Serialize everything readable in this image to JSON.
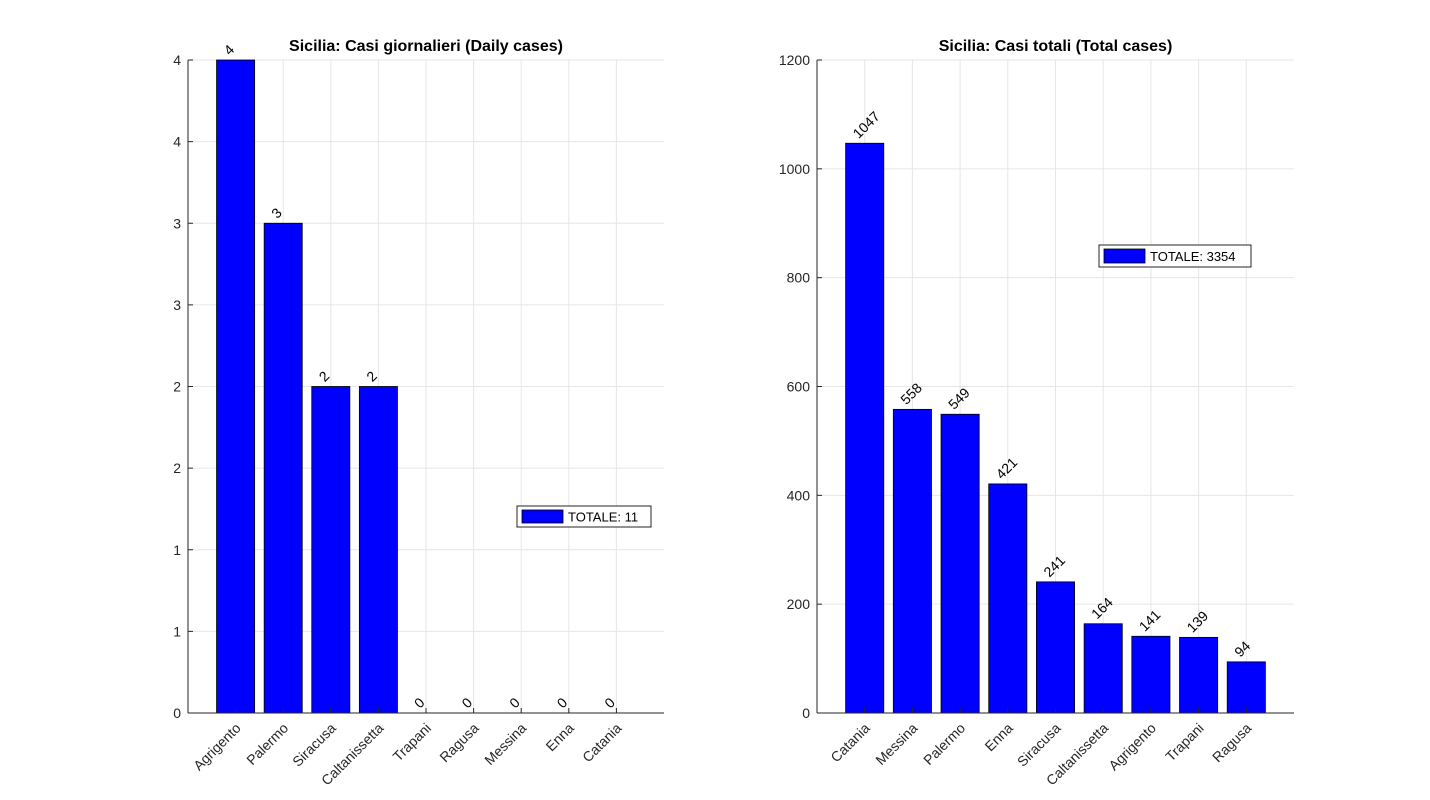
{
  "chart_data": [
    {
      "type": "bar",
      "title": "Sicilia: Casi giornalieri (Daily cases)",
      "categories": [
        "Agrigento",
        "Palermo",
        "Siracusa",
        "Caltanissetta",
        "Trapani",
        "Ragusa",
        "Messina",
        "Enna",
        "Catania"
      ],
      "values": [
        4,
        3,
        2,
        2,
        0,
        0,
        0,
        0,
        0
      ],
      "ylim": [
        0,
        4
      ],
      "yticks": [
        0,
        0.5,
        1,
        1.5,
        2,
        2.5,
        3,
        3.5,
        4
      ],
      "ytick_labels": [
        "0",
        "1",
        "1",
        "2",
        "2",
        "3",
        "3",
        "4",
        "4"
      ],
      "data_labels": [
        "4",
        "3",
        "2",
        "2",
        "0",
        "0",
        "0",
        "0",
        "0"
      ],
      "legend": "TOTALE: 11",
      "legend_position": "middle-right",
      "grid": true,
      "bar_color": "#0000ff",
      "xlabel": "",
      "ylabel": ""
    },
    {
      "type": "bar",
      "title": "Sicilia: Casi totali (Total cases)",
      "categories": [
        "Catania",
        "Messina",
        "Palermo",
        "Enna",
        "Siracusa",
        "Caltanissetta",
        "Agrigento",
        "Trapani",
        "Ragusa"
      ],
      "values": [
        1047,
        558,
        549,
        421,
        241,
        164,
        141,
        139,
        94
      ],
      "ylim": [
        0,
        1200
      ],
      "yticks": [
        0,
        200,
        400,
        600,
        800,
        1000,
        1200
      ],
      "ytick_labels": [
        "0",
        "200",
        "400",
        "600",
        "800",
        "1000",
        "1200"
      ],
      "data_labels": [
        "1047",
        "558",
        "549",
        "421",
        "241",
        "164",
        "141",
        "139",
        "94"
      ],
      "legend": "TOTALE: 3354",
      "legend_position": "upper-right",
      "grid": true,
      "bar_color": "#0000ff",
      "xlabel": "",
      "ylabel": ""
    }
  ]
}
